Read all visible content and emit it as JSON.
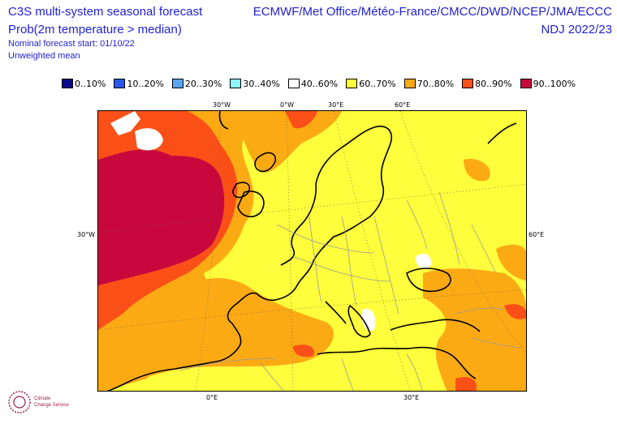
{
  "header": {
    "title": "C3S multi-system seasonal forecast",
    "subtitle": "Prob(2m temperature > median)",
    "forecast_start": "Nominal forecast start: 01/10/22",
    "mean_type": "Unweighted mean",
    "centres": "ECMWF/Met Office/Météo-France/CMCC/DWD/NCEP/JMA/ECCC",
    "period": "NDJ 2022/23"
  },
  "legend": [
    {
      "label": "0..10%",
      "color": "#0a0a8c"
    },
    {
      "label": "10..20%",
      "color": "#2a56f0"
    },
    {
      "label": "20..30%",
      "color": "#5aa6f5"
    },
    {
      "label": "30..40%",
      "color": "#8cf6fa"
    },
    {
      "label": "40..60%",
      "color": "#ffffff"
    },
    {
      "label": "60..70%",
      "color": "#fefe3c"
    },
    {
      "label": "70..80%",
      "color": "#fcaa14"
    },
    {
      "label": "80..90%",
      "color": "#fa5018"
    },
    {
      "label": "90..100%",
      "color": "#c8083c"
    }
  ],
  "axis_labels": {
    "top": [
      "30°W",
      "0°W",
      "30°E",
      "60°E"
    ],
    "bottom": [
      "0°E",
      "30°E"
    ],
    "left": "30°W",
    "right": "60°E"
  },
  "logo": {
    "line1": "Climate",
    "line2": "Change Service"
  }
}
